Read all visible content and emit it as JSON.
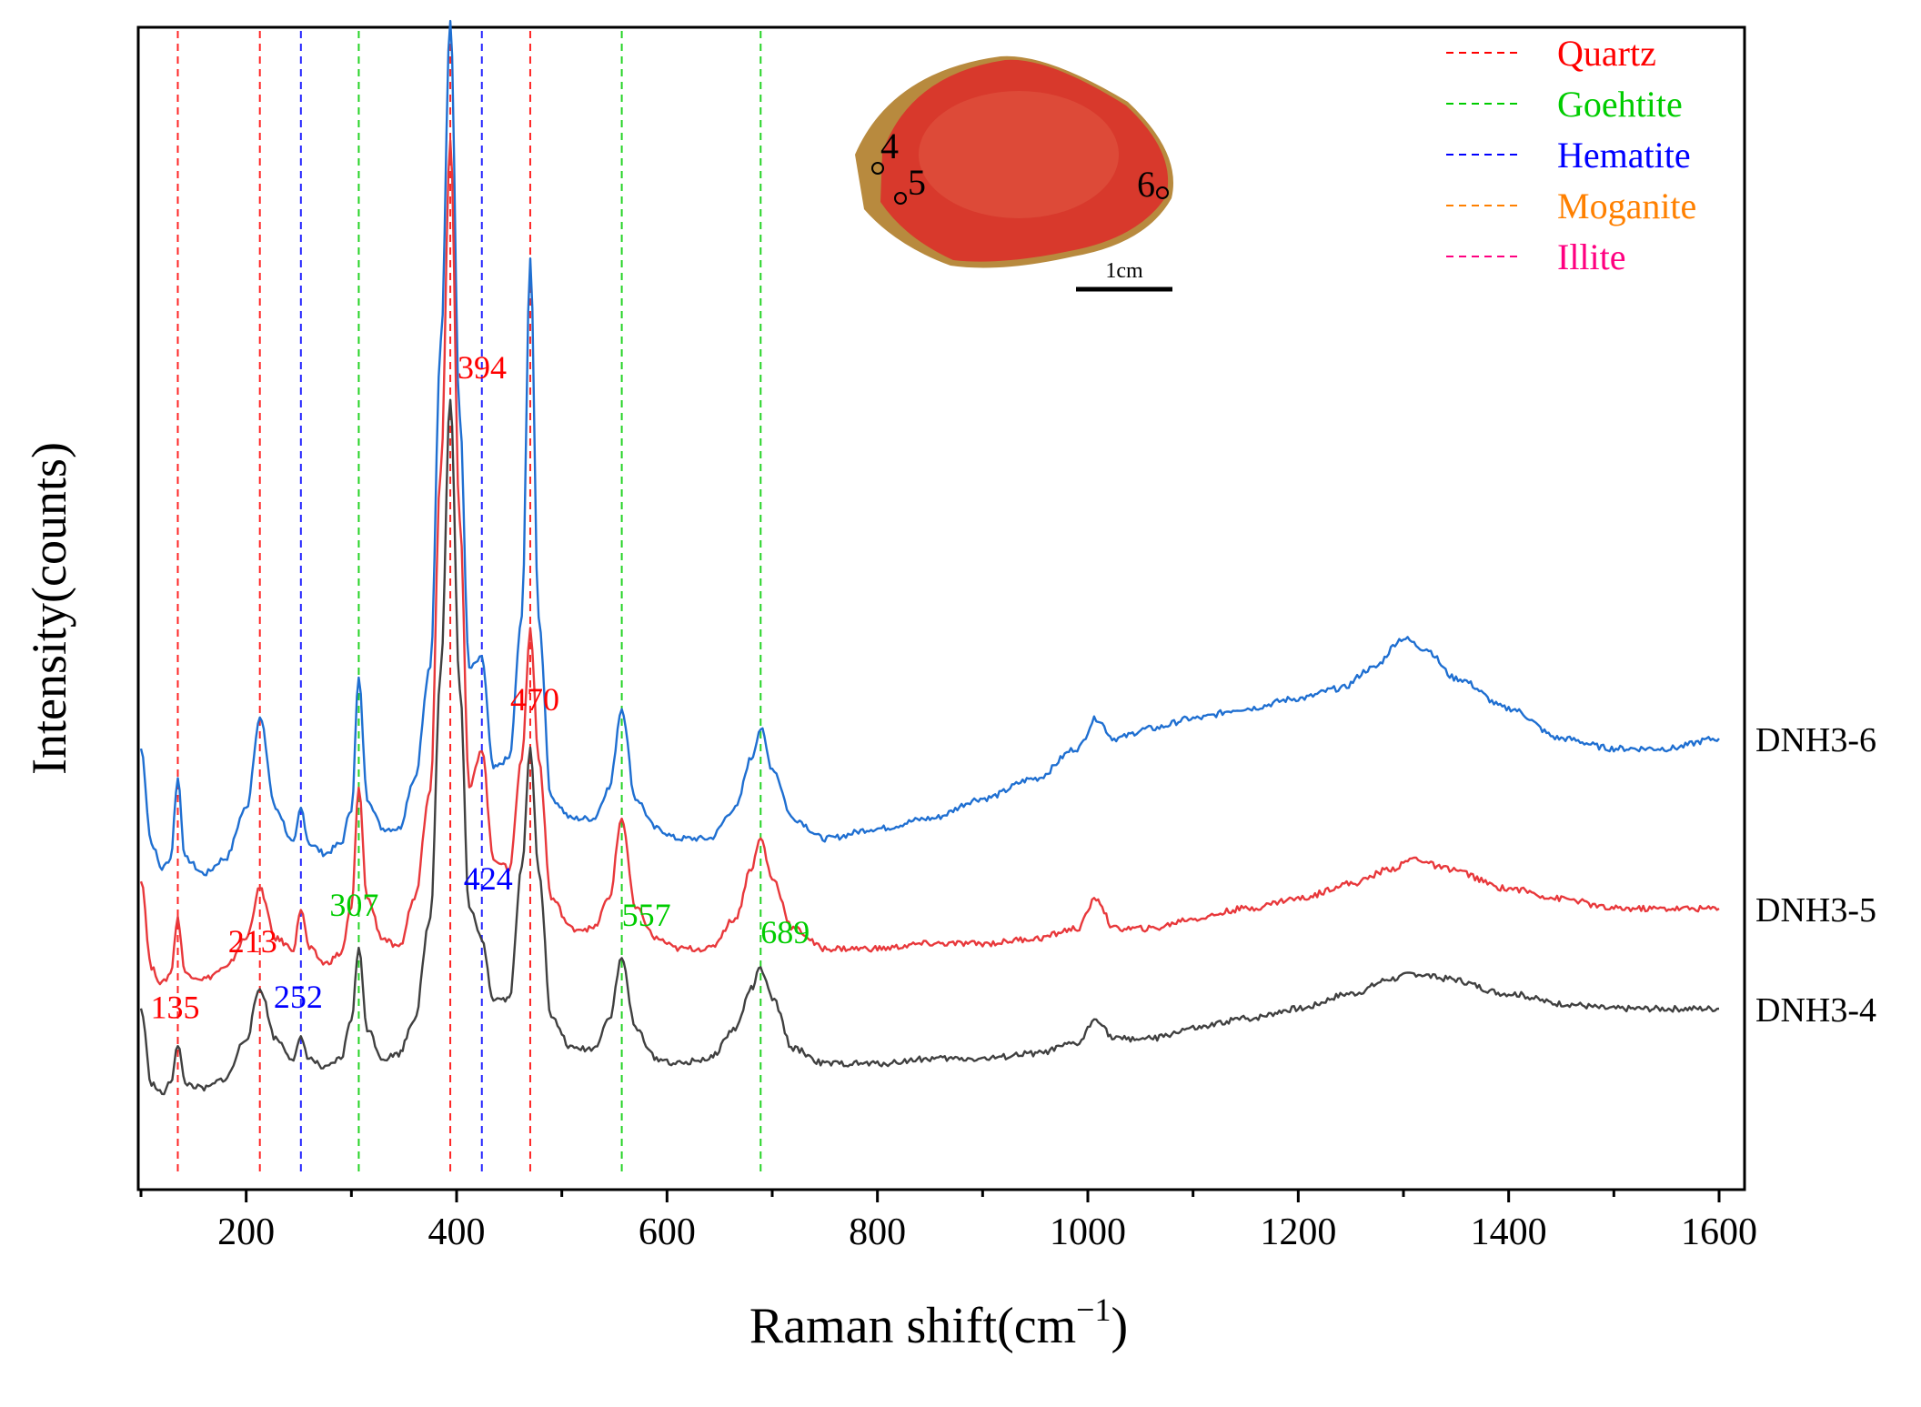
{
  "chart_data": {
    "type": "line",
    "xlabel": "Raman shift(cm",
    "xlabel_sup": "−1",
    "xlabel_close": ")",
    "ylabel": "Intensity(counts)",
    "xlim": [
      100,
      1600
    ],
    "x_ticks": [
      200,
      400,
      600,
      800,
      1000,
      1200,
      1400,
      1600
    ],
    "grid": false,
    "legend_position": "top-right",
    "legend": [
      {
        "name": "Quartz",
        "color": "#ff0000"
      },
      {
        "name": "Goehtite",
        "color": "#00cc00"
      },
      {
        "name": "Hematite",
        "color": "#0000ff"
      },
      {
        "name": "Moganite",
        "color": "#ff8000"
      },
      {
        "name": "Illite",
        "color": "#ff0080"
      }
    ],
    "reference_lines": [
      {
        "x": 135,
        "mineral": "Quartz",
        "color": "#ff0000"
      },
      {
        "x": 213,
        "mineral": "Quartz",
        "color": "#ff0000"
      },
      {
        "x": 252,
        "mineral": "Hematite",
        "color": "#0000ff"
      },
      {
        "x": 307,
        "mineral": "Goehtite",
        "color": "#00cc00"
      },
      {
        "x": 394,
        "mineral": "Quartz",
        "color": "#ff0000"
      },
      {
        "x": 424,
        "mineral": "Hematite",
        "color": "#0000ff"
      },
      {
        "x": 470,
        "mineral": "Quartz",
        "color": "#ff0000"
      },
      {
        "x": 557,
        "mineral": "Goehtite",
        "color": "#00cc00"
      },
      {
        "x": 689,
        "mineral": "Goehtite",
        "color": "#00cc00"
      }
    ],
    "peak_labels": [
      {
        "text": "135",
        "x": 135,
        "color": "#ff0000"
      },
      {
        "text": "213",
        "x": 213,
        "color": "#ff0000"
      },
      {
        "text": "252",
        "x": 252,
        "color": "#0000ff"
      },
      {
        "text": "307",
        "x": 307,
        "color": "#00cc00"
      },
      {
        "text": "394",
        "x": 394,
        "color": "#ff0000"
      },
      {
        "text": "424",
        "x": 424,
        "color": "#0000ff"
      },
      {
        "text": "470",
        "x": 470,
        "color": "#ff0000"
      },
      {
        "text": "557",
        "x": 557,
        "color": "#00cc00"
      },
      {
        "text": "689",
        "x": 689,
        "color": "#00cc00"
      }
    ],
    "series": [
      {
        "name": "DNH3-6",
        "color": "#1f6fd1",
        "baseline": 0.52,
        "points": [
          [
            100,
            0.74
          ],
          [
            110,
            0.55
          ],
          [
            120,
            0.5
          ],
          [
            128,
            0.52
          ],
          [
            135,
            0.68
          ],
          [
            142,
            0.52
          ],
          [
            160,
            0.49
          ],
          [
            180,
            0.52
          ],
          [
            200,
            0.62
          ],
          [
            213,
            0.8
          ],
          [
            228,
            0.62
          ],
          [
            245,
            0.55
          ],
          [
            252,
            0.62
          ],
          [
            260,
            0.55
          ],
          [
            275,
            0.53
          ],
          [
            290,
            0.55
          ],
          [
            300,
            0.62
          ],
          [
            307,
            0.88
          ],
          [
            315,
            0.64
          ],
          [
            330,
            0.58
          ],
          [
            345,
            0.58
          ],
          [
            360,
            0.68
          ],
          [
            375,
            0.9
          ],
          [
            385,
            1.55
          ],
          [
            394,
            2.2
          ],
          [
            403,
            1.4
          ],
          [
            412,
            0.9
          ],
          [
            424,
            0.92
          ],
          [
            435,
            0.7
          ],
          [
            450,
            0.72
          ],
          [
            462,
            1.0
          ],
          [
            470,
            1.72
          ],
          [
            478,
            1.0
          ],
          [
            490,
            0.64
          ],
          [
            510,
            0.6
          ],
          [
            530,
            0.6
          ],
          [
            545,
            0.66
          ],
          [
            557,
            0.82
          ],
          [
            570,
            0.64
          ],
          [
            590,
            0.58
          ],
          [
            610,
            0.56
          ],
          [
            640,
            0.56
          ],
          [
            665,
            0.62
          ],
          [
            680,
            0.72
          ],
          [
            689,
            0.78
          ],
          [
            700,
            0.7
          ],
          [
            720,
            0.6
          ],
          [
            750,
            0.56
          ],
          [
            800,
            0.58
          ],
          [
            850,
            0.6
          ],
          [
            900,
            0.64
          ],
          [
            950,
            0.68
          ],
          [
            990,
            0.74
          ],
          [
            1008,
            0.8
          ],
          [
            1025,
            0.76
          ],
          [
            1060,
            0.78
          ],
          [
            1100,
            0.8
          ],
          [
            1150,
            0.82
          ],
          [
            1200,
            0.84
          ],
          [
            1240,
            0.86
          ],
          [
            1270,
            0.9
          ],
          [
            1300,
            0.96
          ],
          [
            1320,
            0.94
          ],
          [
            1350,
            0.88
          ],
          [
            1400,
            0.82
          ],
          [
            1450,
            0.76
          ],
          [
            1500,
            0.74
          ],
          [
            1550,
            0.74
          ],
          [
            1600,
            0.76
          ]
        ]
      },
      {
        "name": "DNH3-5",
        "color": "#e8383b",
        "baseline": 0.28,
        "points": [
          [
            100,
            0.48
          ],
          [
            110,
            0.3
          ],
          [
            120,
            0.27
          ],
          [
            128,
            0.29
          ],
          [
            135,
            0.4
          ],
          [
            142,
            0.29
          ],
          [
            160,
            0.28
          ],
          [
            180,
            0.3
          ],
          [
            200,
            0.36
          ],
          [
            213,
            0.46
          ],
          [
            228,
            0.36
          ],
          [
            245,
            0.34
          ],
          [
            252,
            0.42
          ],
          [
            260,
            0.34
          ],
          [
            275,
            0.31
          ],
          [
            290,
            0.33
          ],
          [
            300,
            0.42
          ],
          [
            307,
            0.66
          ],
          [
            315,
            0.44
          ],
          [
            330,
            0.36
          ],
          [
            345,
            0.34
          ],
          [
            360,
            0.44
          ],
          [
            375,
            0.66
          ],
          [
            385,
            1.3
          ],
          [
            394,
            1.96
          ],
          [
            403,
            1.2
          ],
          [
            412,
            0.66
          ],
          [
            424,
            0.74
          ],
          [
            435,
            0.52
          ],
          [
            450,
            0.5
          ],
          [
            462,
            0.72
          ],
          [
            470,
            0.98
          ],
          [
            478,
            0.72
          ],
          [
            490,
            0.44
          ],
          [
            510,
            0.38
          ],
          [
            530,
            0.38
          ],
          [
            545,
            0.44
          ],
          [
            557,
            0.6
          ],
          [
            570,
            0.42
          ],
          [
            590,
            0.36
          ],
          [
            610,
            0.34
          ],
          [
            640,
            0.34
          ],
          [
            665,
            0.4
          ],
          [
            680,
            0.5
          ],
          [
            689,
            0.56
          ],
          [
            700,
            0.48
          ],
          [
            720,
            0.38
          ],
          [
            750,
            0.34
          ],
          [
            800,
            0.34
          ],
          [
            850,
            0.35
          ],
          [
            900,
            0.35
          ],
          [
            950,
            0.36
          ],
          [
            990,
            0.38
          ],
          [
            1008,
            0.44
          ],
          [
            1025,
            0.38
          ],
          [
            1060,
            0.38
          ],
          [
            1100,
            0.4
          ],
          [
            1150,
            0.42
          ],
          [
            1200,
            0.44
          ],
          [
            1250,
            0.47
          ],
          [
            1290,
            0.5
          ],
          [
            1310,
            0.52
          ],
          [
            1340,
            0.5
          ],
          [
            1400,
            0.46
          ],
          [
            1450,
            0.44
          ],
          [
            1500,
            0.42
          ],
          [
            1550,
            0.42
          ],
          [
            1600,
            0.42
          ]
        ]
      },
      {
        "name": "DNH3-4",
        "color": "#404040",
        "baseline": 0.05,
        "points": [
          [
            100,
            0.22
          ],
          [
            110,
            0.07
          ],
          [
            120,
            0.05
          ],
          [
            128,
            0.07
          ],
          [
            135,
            0.15
          ],
          [
            142,
            0.07
          ],
          [
            160,
            0.06
          ],
          [
            180,
            0.08
          ],
          [
            200,
            0.16
          ],
          [
            213,
            0.26
          ],
          [
            228,
            0.16
          ],
          [
            245,
            0.12
          ],
          [
            252,
            0.16
          ],
          [
            260,
            0.12
          ],
          [
            275,
            0.1
          ],
          [
            290,
            0.12
          ],
          [
            300,
            0.2
          ],
          [
            307,
            0.34
          ],
          [
            315,
            0.18
          ],
          [
            330,
            0.12
          ],
          [
            345,
            0.13
          ],
          [
            360,
            0.2
          ],
          [
            375,
            0.4
          ],
          [
            385,
            0.9
          ],
          [
            394,
            1.44
          ],
          [
            403,
            0.86
          ],
          [
            412,
            0.42
          ],
          [
            424,
            0.36
          ],
          [
            435,
            0.24
          ],
          [
            450,
            0.24
          ],
          [
            462,
            0.5
          ],
          [
            470,
            0.74
          ],
          [
            478,
            0.5
          ],
          [
            490,
            0.2
          ],
          [
            510,
            0.14
          ],
          [
            530,
            0.14
          ],
          [
            545,
            0.2
          ],
          [
            557,
            0.32
          ],
          [
            570,
            0.18
          ],
          [
            590,
            0.12
          ],
          [
            610,
            0.11
          ],
          [
            640,
            0.12
          ],
          [
            665,
            0.18
          ],
          [
            680,
            0.26
          ],
          [
            689,
            0.3
          ],
          [
            700,
            0.24
          ],
          [
            720,
            0.14
          ],
          [
            750,
            0.11
          ],
          [
            800,
            0.11
          ],
          [
            850,
            0.12
          ],
          [
            900,
            0.12
          ],
          [
            950,
            0.13
          ],
          [
            990,
            0.15
          ],
          [
            1008,
            0.2
          ],
          [
            1025,
            0.16
          ],
          [
            1060,
            0.16
          ],
          [
            1100,
            0.18
          ],
          [
            1150,
            0.2
          ],
          [
            1200,
            0.22
          ],
          [
            1250,
            0.25
          ],
          [
            1290,
            0.28
          ],
          [
            1310,
            0.29
          ],
          [
            1340,
            0.28
          ],
          [
            1400,
            0.25
          ],
          [
            1450,
            0.23
          ],
          [
            1500,
            0.22
          ],
          [
            1550,
            0.22
          ],
          [
            1600,
            0.22
          ]
        ]
      }
    ]
  },
  "inset": {
    "point_labels": [
      "4",
      "5",
      "6"
    ],
    "scale_label": "1cm",
    "stone_color": "#d8392c",
    "edge_color": "#b88a3e"
  }
}
